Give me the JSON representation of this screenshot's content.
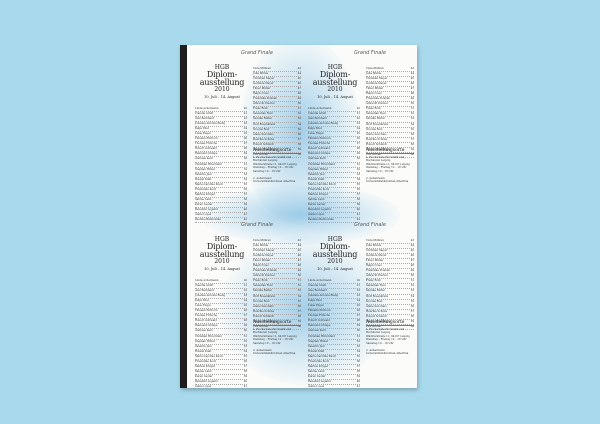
{
  "poster": {
    "tag": "Grand Finale",
    "school": "HGB",
    "title_line1": "Diplom-",
    "title_line2": "ausstellung",
    "year": "2010",
    "dates": "10. Juli – 14. August",
    "names_left": [
      {
        "name": "Linda Achermann",
        "page": "20"
      },
      {
        "name": "Claudia Arndt",
        "page": "21"
      },
      {
        "name": "Alex Bernhard",
        "page": "22"
      },
      {
        "name": "Johanna Antonia Bielig",
        "page": "23"
      },
      {
        "name": "Katja Eder",
        "page": "24"
      },
      {
        "name": "Luise Engel",
        "page": "25"
      },
      {
        "name": "Tilmann Ehrhorn",
        "page": "26"
      },
      {
        "name": "Thomas Fritsche",
        "page": "27"
      },
      {
        "name": "Robert Gottwald",
        "page": "28"
      },
      {
        "name": "Raimund Grimpe",
        "page": "29"
      },
      {
        "name": "Andreas Kern",
        "page": "30"
      },
      {
        "name": "Christian Hirschfeld",
        "page": "31"
      },
      {
        "name": "Stephan Hüber",
        "page": "32"
      },
      {
        "name": "Valentin Just",
        "page": "33"
      },
      {
        "name": "Roland Klatt",
        "page": "34"
      },
      {
        "name": "Marie-Caroline Knoll",
        "page": "35"
      },
      {
        "name": "Friederike Koch",
        "page": "36"
      },
      {
        "name": "Markus Krüger",
        "page": "37"
      },
      {
        "name": "Sabine Land",
        "page": "38"
      },
      {
        "name": "Karen Lauter",
        "page": "39"
      },
      {
        "name": "Benedikt Legarid",
        "page": "40"
      },
      {
        "name": "Annie Lopez",
        "page": "41"
      },
      {
        "name": "Paulina Markowska",
        "page": "42"
      }
    ],
    "names_right": [
      {
        "name": "Viola Mühren",
        "page": "43"
      },
      {
        "name": "Julia Mühle",
        "page": "44"
      },
      {
        "name": "Christian Meyer",
        "page": "45"
      },
      {
        "name": "Gerlinde Meyer",
        "page": "46"
      },
      {
        "name": "Tilner Müller",
        "page": "47"
      },
      {
        "name": "Ralph Nowo",
        "page": "48"
      },
      {
        "name": "Franziska Pomrak",
        "page": "49"
      },
      {
        "name": "Albrecht Pischel",
        "page": "50"
      },
      {
        "name": "Franz Rolli",
        "page": "51"
      },
      {
        "name": "Sebastian Rost",
        "page": "52"
      },
      {
        "name": "Monika Ruffer",
        "page": "53"
      },
      {
        "name": "Wolf Rosenkranz",
        "page": "54"
      },
      {
        "name": "Nicolas Rost",
        "page": "55"
      },
      {
        "name": "Annie Savorano",
        "page": "56"
      },
      {
        "name": "Henrike Schöbe",
        "page": "57"
      },
      {
        "name": "Robert Schmidt",
        "page": "58"
      },
      {
        "name": "Martin Strehlinger",
        "page": "59"
      },
      {
        "name": "Eva Werner",
        "page": "60"
      }
    ],
    "orte": {
      "heading": "Ausstellungsorte",
      "place1": "1. Hochschule für Grafik und Buchkunst Leipzig",
      "address1": "Wächterstraße 11, 04107 Leipzig",
      "hours1": "Dienstag – Freitag   12 – 18 Uhr",
      "hours2": "Samstag   10 – 18 Uhr",
      "place2": "2. Außenraum",
      "address2": "Universitätsbibliothek Albertina"
    }
  },
  "colors": {
    "background": "#a8d9ec",
    "paper": "#fbfbf9",
    "spine": "#1e1e1e",
    "wash": "#5aaadc"
  }
}
